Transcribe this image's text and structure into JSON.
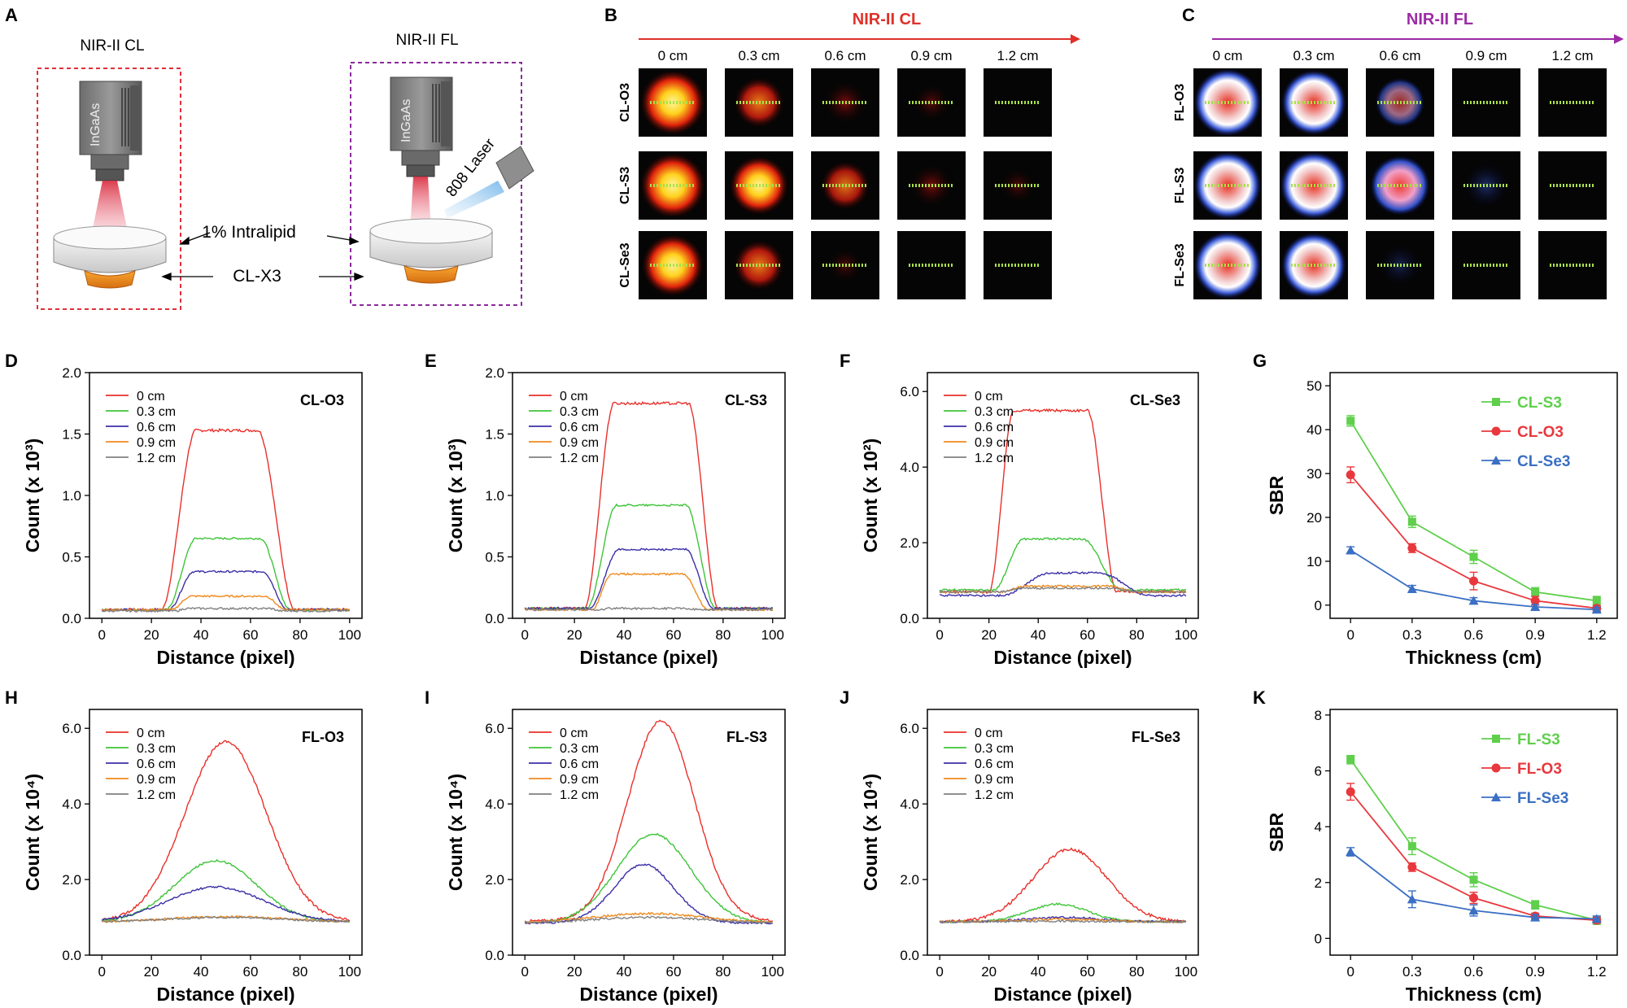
{
  "panel_letters": {
    "A": "A",
    "B": "B",
    "C": "C",
    "D": "D",
    "E": "E",
    "F": "F",
    "G": "G",
    "H": "H",
    "I": "I",
    "J": "J",
    "K": "K"
  },
  "schematic": {
    "cl_title": "NIR-II CL",
    "fl_title": "NIR-II FL",
    "camera_label": "InGaAs",
    "laser_label": "808 Laser",
    "intralipid_label": "1% Intralipid",
    "sample_label": "CL-X3"
  },
  "grids": {
    "cl": {
      "title": "NIR-II CL",
      "arrow_color": "#e0302a",
      "columns": [
        "0 cm",
        "0.3 cm",
        "0.6 cm",
        "0.9 cm",
        "1.2 cm"
      ],
      "rows": [
        "CL-O3",
        "CL-S3",
        "CL-Se3"
      ],
      "intensity": [
        [
          1.0,
          0.55,
          0.3,
          0.12,
          0
        ],
        [
          1.0,
          0.8,
          0.5,
          0.3,
          0.06
        ],
        [
          0.9,
          0.55,
          0.05,
          0,
          0
        ]
      ]
    },
    "fl": {
      "title": "NIR-II FL",
      "arrow_color": "#9c2aa5",
      "columns": [
        "0 cm",
        "0.3 cm",
        "0.6 cm",
        "0.9 cm",
        "1.2 cm"
      ],
      "rows": [
        "FL-O3",
        "FL-S3",
        "FL-Se3"
      ],
      "intensity": [
        [
          1.0,
          0.9,
          0.3,
          0,
          0
        ],
        [
          1.0,
          1.0,
          0.7,
          0.15,
          0
        ],
        [
          1.0,
          0.9,
          0.02,
          0,
          0
        ]
      ]
    }
  },
  "chart_data": [
    {
      "type": "line",
      "panel": "D",
      "title": "CL-O3",
      "xlabel": "Distance (pixel)",
      "ylabel": "Count (x 10³)",
      "xlim": [
        -5,
        105
      ],
      "ylim": [
        0,
        2.0
      ],
      "xticks": [
        0,
        20,
        40,
        60,
        80,
        100
      ],
      "yticks": [
        "0.0",
        "0.5",
        "1.0",
        "1.5",
        "2.0"
      ],
      "legend": [
        "0 cm",
        "0.3 cm",
        "0.6 cm",
        "0.9 cm",
        "1.2 cm"
      ],
      "series": [
        {
          "name": "0 cm",
          "plateau": 1.53,
          "rise": [
            24,
            38
          ],
          "fall": [
            63,
            78
          ],
          "base": 0.07
        },
        {
          "name": "0.3 cm",
          "plateau": 0.65,
          "rise": [
            26,
            38
          ],
          "fall": [
            64,
            76
          ],
          "base": 0.07
        },
        {
          "name": "0.6 cm",
          "plateau": 0.38,
          "rise": [
            27,
            37
          ],
          "fall": [
            65,
            75
          ],
          "base": 0.07
        },
        {
          "name": "0.9 cm",
          "plateau": 0.18,
          "rise": [
            28,
            36
          ],
          "fall": [
            66,
            74
          ],
          "base": 0.07
        },
        {
          "name": "1.2 cm",
          "plateau": 0.08,
          "rise": [
            30,
            34
          ],
          "fall": [
            68,
            72
          ],
          "base": 0.06
        }
      ]
    },
    {
      "type": "line",
      "panel": "E",
      "title": "CL-S3",
      "xlabel": "Distance (pixel)",
      "ylabel": "Count (x 10³)",
      "xlim": [
        -5,
        105
      ],
      "ylim": [
        0,
        2.0
      ],
      "xticks": [
        0,
        20,
        40,
        60,
        80,
        100
      ],
      "yticks": [
        "0.0",
        "0.5",
        "1.0",
        "1.5",
        "2.0"
      ],
      "legend": [
        "0 cm",
        "0.3 cm",
        "0.6 cm",
        "0.9 cm",
        "1.2 cm"
      ],
      "series": [
        {
          "name": "0 cm",
          "plateau": 1.75,
          "rise": [
            24,
            36
          ],
          "fall": [
            66,
            78
          ],
          "base": 0.08
        },
        {
          "name": "0.3 cm",
          "plateau": 0.92,
          "rise": [
            25,
            37
          ],
          "fall": [
            65,
            77
          ],
          "base": 0.08
        },
        {
          "name": "0.6 cm",
          "plateau": 0.56,
          "rise": [
            26,
            38
          ],
          "fall": [
            65,
            76
          ],
          "base": 0.08
        },
        {
          "name": "0.9 cm",
          "plateau": 0.36,
          "rise": [
            27,
            35
          ],
          "fall": [
            64,
            74
          ],
          "base": 0.07
        },
        {
          "name": "1.2 cm",
          "plateau": 0.08,
          "rise": [
            30,
            34
          ],
          "fall": [
            66,
            70
          ],
          "base": 0.07
        }
      ]
    },
    {
      "type": "line",
      "panel": "F",
      "title": "CL-Se3",
      "xlabel": "Distance (pixel)",
      "ylabel": "Count (x 10²)",
      "xlim": [
        -5,
        105
      ],
      "ylim": [
        0,
        6.5
      ],
      "xticks": [
        0,
        20,
        40,
        60,
        80,
        100
      ],
      "yticks": [
        "0.0",
        "2.0",
        "4.0",
        "6.0"
      ],
      "legend": [
        "0 cm",
        "0.3 cm",
        "0.6 cm",
        "0.9 cm",
        "1.2 cm"
      ],
      "series": [
        {
          "name": "0 cm",
          "plateau": 5.5,
          "rise": [
            20,
            30
          ],
          "fall": [
            60,
            72
          ],
          "base": 0.7
        },
        {
          "name": "0.3 cm",
          "plateau": 2.1,
          "rise": [
            22,
            34
          ],
          "fall": [
            58,
            74
          ],
          "base": 0.75
        },
        {
          "name": "0.6 cm",
          "plateau": 1.2,
          "rise": [
            25,
            45
          ],
          "fall": [
            65,
            85
          ],
          "base": 0.6
        },
        {
          "name": "0.9 cm",
          "plateau": 0.85,
          "rise": [
            25,
            35
          ],
          "fall": [
            70,
            80
          ],
          "base": 0.7
        },
        {
          "name": "1.2 cm",
          "plateau": 0.8,
          "rise": [
            25,
            35
          ],
          "fall": [
            70,
            80
          ],
          "base": 0.7
        }
      ]
    },
    {
      "type": "line",
      "panel": "G",
      "xlabel": "Thickness (cm)",
      "ylabel": "SBR",
      "xlim": [
        -0.1,
        1.3
      ],
      "ylim": [
        -3,
        53
      ],
      "xticks": [
        "0",
        "0.3",
        "0.6",
        "0.9",
        "1.2"
      ],
      "yticks": [
        "0",
        "10",
        "20",
        "30",
        "40",
        "50"
      ],
      "x": [
        0,
        0.3,
        0.6,
        0.9,
        1.2
      ],
      "series": [
        {
          "name": "CL-S3",
          "color": "#5fcf4c",
          "marker": "square",
          "values": [
            42,
            19,
            11,
            3,
            1
          ],
          "err": [
            1.2,
            1.3,
            1.5,
            1,
            1
          ]
        },
        {
          "name": "CL-O3",
          "color": "#e8383d",
          "marker": "circle",
          "values": [
            29.7,
            13,
            5.5,
            1,
            -0.7
          ],
          "err": [
            1.8,
            1,
            2,
            1,
            0.6
          ]
        },
        {
          "name": "CL-Se3",
          "color": "#3b6fc4",
          "marker": "triangle",
          "values": [
            12.5,
            3.7,
            1,
            -0.4,
            -1
          ],
          "err": [
            0.8,
            0.8,
            0.7,
            0.5,
            0.5
          ]
        }
      ]
    },
    {
      "type": "line",
      "panel": "H",
      "title": "FL-O3",
      "xlabel": "Distance (pixel)",
      "ylabel": "Count (x 10⁴)",
      "xlim": [
        -5,
        105
      ],
      "ylim": [
        0,
        6.5
      ],
      "xticks": [
        0,
        20,
        40,
        60,
        80,
        100
      ],
      "yticks": [
        "0.0",
        "2.0",
        "4.0",
        "6.0"
      ],
      "legend": [
        "0 cm",
        "0.3 cm",
        "0.6 cm",
        "0.9 cm",
        "1.2 cm"
      ],
      "series": [
        {
          "name": "0 cm",
          "peak": 5.65,
          "center": 50,
          "width": 22,
          "base": 0.88
        },
        {
          "name": "0.3 cm",
          "peak": 2.5,
          "center": 46,
          "width": 22,
          "base": 0.88
        },
        {
          "name": "0.6 cm",
          "peak": 1.8,
          "center": 46,
          "width": 26,
          "base": 0.88
        },
        {
          "name": "0.9 cm",
          "peak": 1.02,
          "center": 50,
          "width": 30,
          "base": 0.88
        },
        {
          "name": "1.2 cm",
          "peak": 1.0,
          "center": 50,
          "width": 30,
          "base": 0.88
        }
      ]
    },
    {
      "type": "line",
      "panel": "I",
      "title": "FL-S3",
      "xlabel": "Distance (pixel)",
      "ylabel": "Count (x 10⁴)",
      "xlim": [
        -5,
        105
      ],
      "ylim": [
        0,
        6.5
      ],
      "xticks": [
        0,
        20,
        40,
        60,
        80,
        100
      ],
      "yticks": [
        "0.0",
        "2.0",
        "4.0",
        "6.0"
      ],
      "legend": [
        "0 cm",
        "0.3 cm",
        "0.6 cm",
        "0.9 cm",
        "1.2 cm"
      ],
      "series": [
        {
          "name": "0 cm",
          "peak": 6.2,
          "center": 55,
          "width": 18,
          "base": 0.9
        },
        {
          "name": "0.3 cm",
          "peak": 3.2,
          "center": 52,
          "width": 20,
          "base": 0.85
        },
        {
          "name": "0.6 cm",
          "peak": 2.4,
          "center": 48,
          "width": 16,
          "base": 0.85
        },
        {
          "name": "0.9 cm",
          "peak": 1.1,
          "center": 50,
          "width": 30,
          "base": 0.85
        },
        {
          "name": "1.2 cm",
          "peak": 1.0,
          "center": 50,
          "width": 30,
          "base": 0.85
        }
      ]
    },
    {
      "type": "line",
      "panel": "J",
      "title": "FL-Se3",
      "xlabel": "Distance (pixel)",
      "ylabel": "Count (x 10⁴)",
      "xlim": [
        -5,
        105
      ],
      "ylim": [
        0,
        6.5
      ],
      "xticks": [
        0,
        20,
        40,
        60,
        80,
        100
      ],
      "yticks": [
        "0.0",
        "2.0",
        "4.0",
        "6.0"
      ],
      "legend": [
        "0 cm",
        "0.3 cm",
        "0.6 cm",
        "0.9 cm",
        "1.2 cm"
      ],
      "series": [
        {
          "name": "0 cm",
          "peak": 2.8,
          "center": 53,
          "width": 20,
          "base": 0.88
        },
        {
          "name": "0.3 cm",
          "peak": 1.35,
          "center": 48,
          "width": 16,
          "base": 0.88
        },
        {
          "name": "0.6 cm",
          "peak": 1.0,
          "center": 50,
          "width": 20,
          "base": 0.88
        },
        {
          "name": "0.9 cm",
          "peak": 0.95,
          "center": 50,
          "width": 25,
          "base": 0.88
        },
        {
          "name": "1.2 cm",
          "peak": 0.9,
          "center": 50,
          "width": 25,
          "base": 0.88
        }
      ]
    },
    {
      "type": "line",
      "panel": "K",
      "xlabel": "Thickness (cm)",
      "ylabel": "SBR",
      "xlim": [
        -0.1,
        1.3
      ],
      "ylim": [
        -0.6,
        8.2
      ],
      "xticks": [
        "0",
        "0.3",
        "0.6",
        "0.9",
        "1.2"
      ],
      "yticks": [
        "0",
        "2",
        "4",
        "6",
        "8"
      ],
      "x": [
        0,
        0.3,
        0.6,
        0.9,
        1.2
      ],
      "series": [
        {
          "name": "FL-S3",
          "color": "#5fcf4c",
          "marker": "square",
          "values": [
            6.4,
            3.3,
            2.1,
            1.2,
            0.65
          ],
          "err": [
            0.15,
            0.3,
            0.25,
            0.15,
            0.15
          ]
        },
        {
          "name": "FL-O3",
          "color": "#e8383d",
          "marker": "circle",
          "values": [
            5.25,
            2.55,
            1.45,
            0.8,
            0.65
          ],
          "err": [
            0.3,
            0.15,
            0.2,
            0.1,
            0.1
          ]
        },
        {
          "name": "FL-Se3",
          "color": "#3b6fc4",
          "marker": "triangle",
          "values": [
            3.1,
            1.4,
            1.0,
            0.75,
            0.7
          ],
          "err": [
            0.15,
            0.3,
            0.2,
            0.1,
            0.1
          ]
        }
      ]
    }
  ],
  "line_colors": [
    "#e8302a",
    "#3fc43a",
    "#3b2fa8",
    "#f08a1e",
    "#808080"
  ]
}
